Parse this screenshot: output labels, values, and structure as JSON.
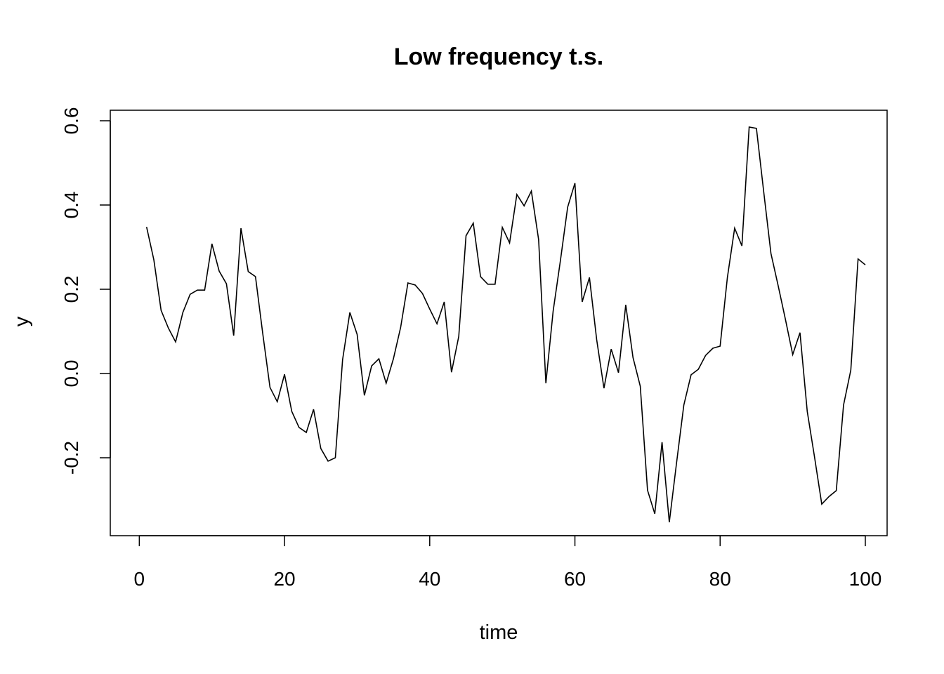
{
  "chart_data": {
    "type": "line",
    "title": "Low frequency t.s.",
    "xlabel": "time",
    "ylabel": "y",
    "xlim": [
      -4,
      103
    ],
    "ylim": [
      -0.385,
      0.625
    ],
    "x_ticks": [
      0,
      20,
      40,
      60,
      80,
      100
    ],
    "x_tick_labels": [
      "0",
      "20",
      "40",
      "60",
      "80",
      "100"
    ],
    "y_ticks": [
      -0.2,
      0.0,
      0.2,
      0.4,
      0.6
    ],
    "y_tick_labels": [
      "-0.2",
      "0.0",
      "0.2",
      "0.4",
      "0.6"
    ],
    "grid": false,
    "series": [
      {
        "name": "y",
        "color": "#000000",
        "x": [
          1,
          2,
          3,
          4,
          5,
          6,
          7,
          8,
          9,
          10,
          11,
          12,
          13,
          14,
          15,
          16,
          17,
          18,
          19,
          20,
          21,
          22,
          23,
          24,
          25,
          26,
          27,
          28,
          29,
          30,
          31,
          32,
          33,
          34,
          35,
          36,
          37,
          38,
          39,
          40,
          41,
          42,
          43,
          44,
          45,
          46,
          47,
          48,
          49,
          50,
          51,
          52,
          53,
          54,
          55,
          56,
          57,
          58,
          59,
          60,
          61,
          62,
          63,
          64,
          65,
          66,
          67,
          68,
          69,
          70,
          71,
          72,
          73,
          74,
          75,
          76,
          77,
          78,
          79,
          80,
          81,
          82,
          83,
          84,
          85,
          86,
          87,
          88,
          89,
          90,
          91,
          92,
          93,
          94,
          95,
          96,
          97,
          98,
          99,
          100
        ],
        "values": [
          0.348,
          0.27,
          0.15,
          0.108,
          0.075,
          0.145,
          0.188,
          0.198,
          0.198,
          0.308,
          0.243,
          0.213,
          0.09,
          0.345,
          0.242,
          0.23,
          0.095,
          -0.033,
          -0.067,
          -0.002,
          -0.09,
          -0.128,
          -0.14,
          -0.085,
          -0.178,
          -0.208,
          -0.2,
          0.033,
          0.145,
          0.093,
          -0.052,
          0.018,
          0.035,
          -0.023,
          0.035,
          0.11,
          0.215,
          0.21,
          0.19,
          0.153,
          0.118,
          0.17,
          0.003,
          0.088,
          0.327,
          0.357,
          0.23,
          0.212,
          0.212,
          0.347,
          0.31,
          0.425,
          0.398,
          0.433,
          0.318,
          -0.023,
          0.148,
          0.268,
          0.395,
          0.452,
          0.17,
          0.228,
          0.08,
          -0.035,
          0.058,
          0.002,
          0.163,
          0.038,
          -0.03,
          -0.277,
          -0.333,
          -0.163,
          -0.353,
          -0.212,
          -0.075,
          -0.003,
          0.01,
          0.043,
          0.06,
          0.065,
          0.228,
          0.345,
          0.303,
          0.585,
          0.582,
          0.432,
          0.285,
          0.208,
          0.128,
          0.045,
          0.097,
          -0.09,
          -0.198,
          -0.31,
          -0.292,
          -0.278,
          -0.075,
          0.008,
          0.272,
          0.258
        ]
      }
    ]
  }
}
